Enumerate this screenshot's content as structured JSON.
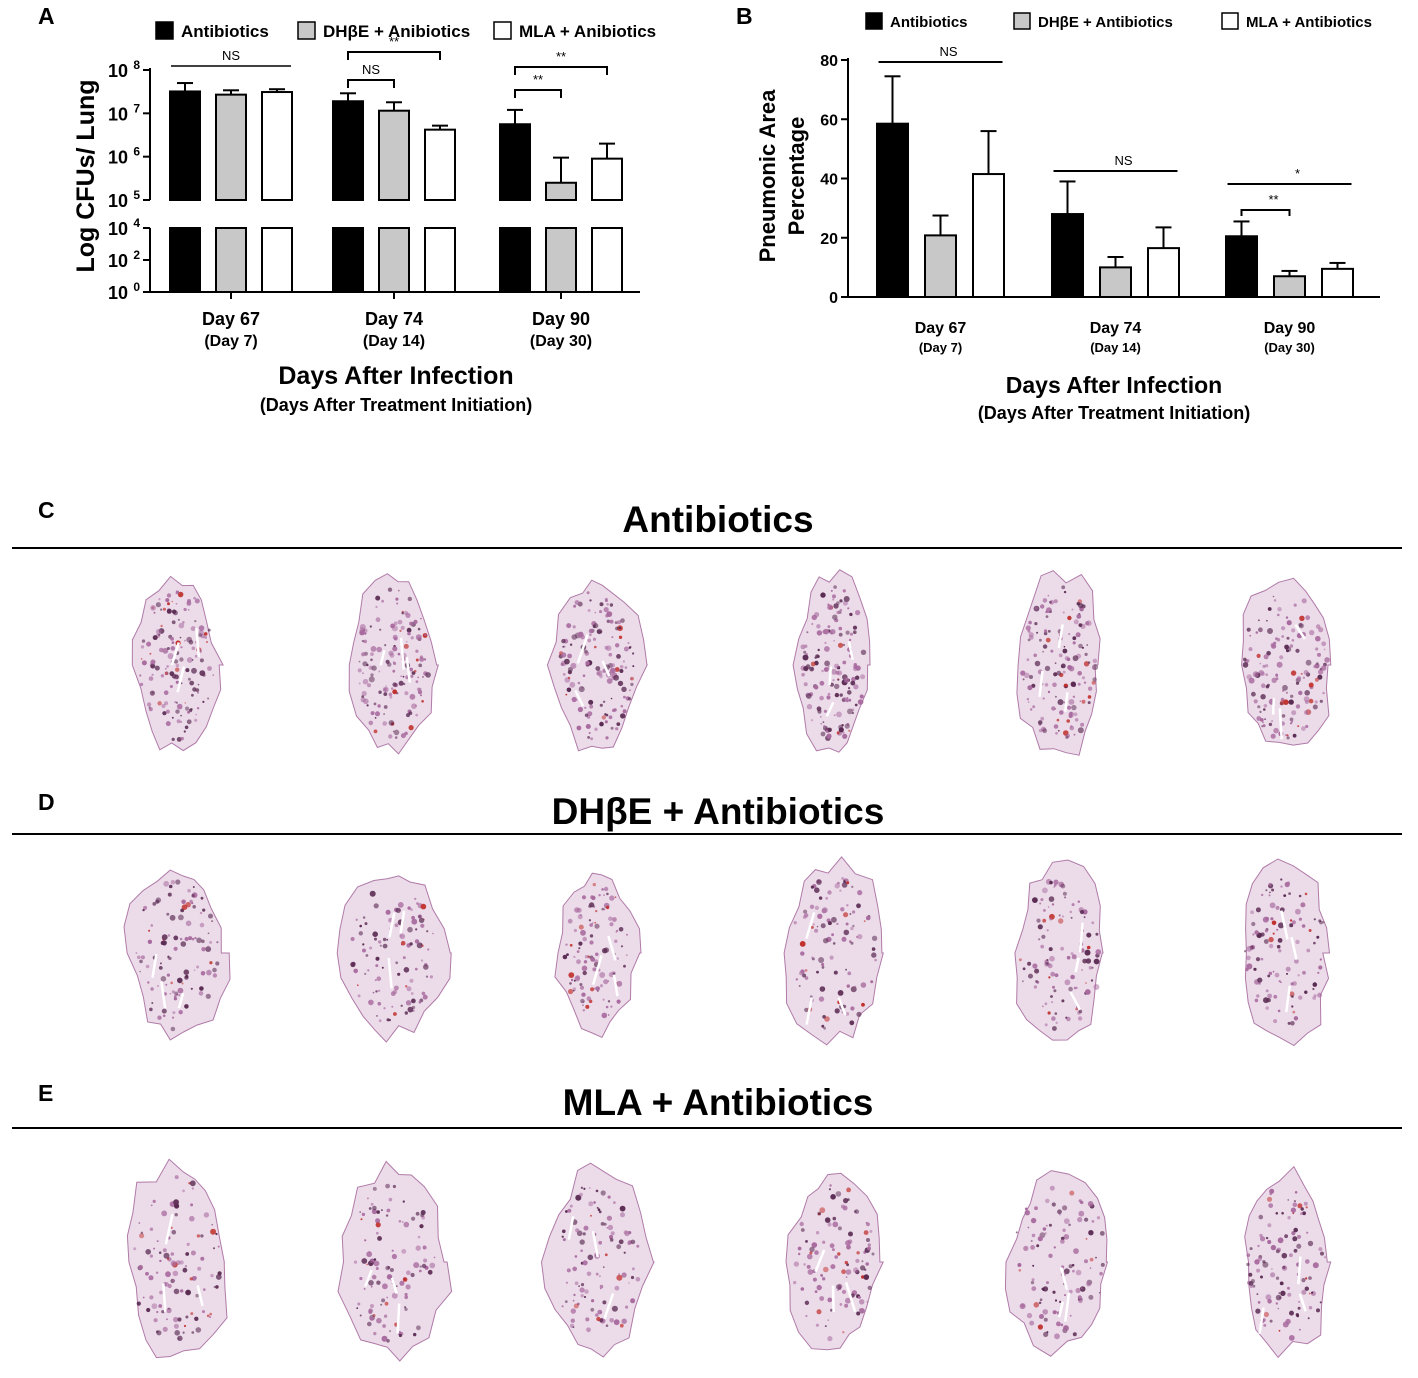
{
  "colors": {
    "antibiotics": "#000000",
    "dhbe": "#c8c8c8",
    "mla": "#ffffff",
    "tissue_dark": "#5a2a52",
    "tissue_mid": "#a86a9e",
    "tissue_red": "#c0302c"
  },
  "legend": [
    {
      "label": "Antibiotics",
      "color": "#000000"
    },
    {
      "label": "DHβE + Anibiotics",
      "color": "#c8c8c8"
    },
    {
      "label": "MLA + Anibiotics",
      "color": "#ffffff"
    }
  ],
  "legend_b": [
    {
      "label": "Antibiotics",
      "color": "#000000"
    },
    {
      "label": "DHβE + Antibiotics",
      "color": "#c8c8c8"
    },
    {
      "label": "MLA + Antibiotics",
      "color": "#ffffff"
    }
  ],
  "chart_data": [
    {
      "panel": "A",
      "type": "bar",
      "scale": "log (broken axis)",
      "ylabel": "Log CFUs/ Lung",
      "xlabel": "Days After Infection",
      "xlabel_sub": "(Days After Treatment Initiation)",
      "categories": [
        "Day 67",
        "Day 74",
        "Day 90"
      ],
      "category_sub": [
        "(Day 7)",
        "(Day 14)",
        "(Day 30)"
      ],
      "yticks_upper": [
        {
          "value": 100000,
          "base": "10",
          "exp": "5"
        },
        {
          "value": 1000000,
          "base": "10",
          "exp": "6"
        },
        {
          "value": 10000000,
          "base": "10",
          "exp": "7"
        },
        {
          "value": 100000000,
          "base": "10",
          "exp": "8"
        }
      ],
      "yticks_lower": [
        {
          "value": 1,
          "base": "10",
          "exp": "0"
        },
        {
          "value": 100,
          "base": "10",
          "exp": "2"
        },
        {
          "value": 10000,
          "base": "10",
          "exp": "4"
        }
      ],
      "series": [
        {
          "name": "Antibiotics",
          "values": [
            32000000,
            19000000,
            5600000
          ],
          "errors": [
            50000000,
            29000000,
            12000000
          ]
        },
        {
          "name": "DHβE + Anibiotics",
          "values": [
            27000000,
            11500000,
            250000
          ],
          "errors": [
            34000000,
            18000000,
            950000
          ]
        },
        {
          "name": "MLA + Anibiotics",
          "values": [
            31000000,
            4200000,
            900000
          ],
          "errors": [
            36000000,
            5200000,
            2000000
          ]
        }
      ],
      "annotations": [
        {
          "text": "NS",
          "group": 0,
          "from": 0,
          "to": 2,
          "level": 0
        },
        {
          "text": "NS",
          "group": 1,
          "from": 0,
          "to": 1,
          "level": 0
        },
        {
          "text": "**",
          "group": 1,
          "from": 0,
          "to": 2,
          "level": 1
        },
        {
          "text": "**",
          "group": 2,
          "from": 0,
          "to": 1,
          "level": 0
        },
        {
          "text": "**",
          "group": 2,
          "from": 0,
          "to": 2,
          "level": 1
        }
      ]
    },
    {
      "panel": "B",
      "type": "bar",
      "ylabel": "Pneumonic Area",
      "ylabel2": "Percentage",
      "xlabel": "Days After Infection",
      "xlabel_sub": "(Days After Treatment Initiation)",
      "categories": [
        "Day 67",
        "Day 74",
        "Day 90"
      ],
      "category_sub": [
        "(Day 7)",
        "(Day 14)",
        "(Day 30)"
      ],
      "ylim": [
        0,
        80
      ],
      "yticks": [
        "0",
        "20",
        "40",
        "60",
        "80"
      ],
      "series": [
        {
          "name": "Antibiotics",
          "values": [
            58.5,
            28,
            20.5
          ],
          "errors": [
            74.5,
            39,
            25.5
          ]
        },
        {
          "name": "DHβE + Antibiotics",
          "values": [
            20.8,
            10,
            7
          ],
          "errors": [
            27.5,
            13.5,
            8.8
          ]
        },
        {
          "name": "MLA + Antibiotics",
          "values": [
            41.5,
            16.5,
            9.5
          ],
          "errors": [
            56,
            23.5,
            11.5
          ]
        }
      ],
      "annotations": [
        {
          "text": "NS",
          "group": 0,
          "from": 0,
          "to": 2,
          "level": 0
        },
        {
          "text": "NS",
          "group": 1,
          "from": 0,
          "to": 2,
          "level": 0
        },
        {
          "text": "**",
          "group": 2,
          "from": 0,
          "to": 1,
          "level": 0
        },
        {
          "text": "*",
          "group": 2,
          "from": 0,
          "to": 2,
          "level": 1
        }
      ]
    }
  ],
  "panels": {
    "a": "A",
    "b": "B",
    "c": "C",
    "d": "D",
    "e": "E"
  },
  "rows": [
    {
      "letter": "C",
      "title": "Antibiotics"
    },
    {
      "letter": "D",
      "title": "DHβE + Antibiotics"
    },
    {
      "letter": "E",
      "title": "MLA + Antibiotics"
    }
  ]
}
